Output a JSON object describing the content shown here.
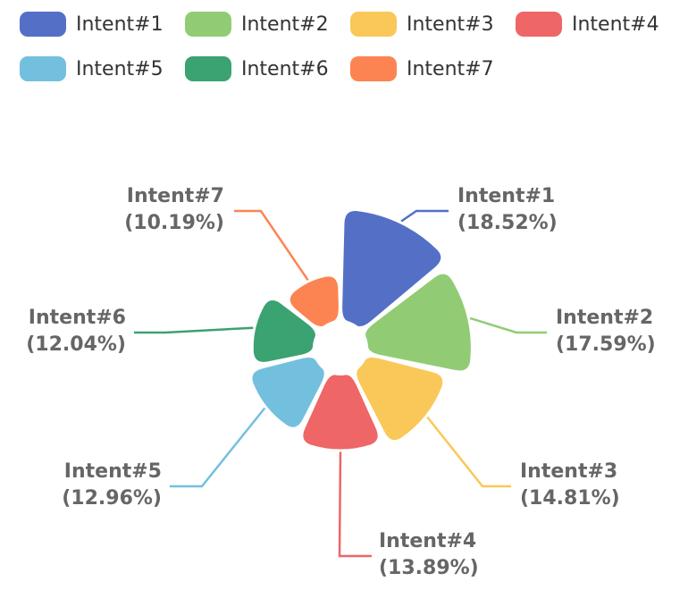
{
  "chart_data": {
    "type": "pie",
    "subtype": "rose",
    "title": "",
    "legend_position": "top",
    "categories": [
      "Intent#1",
      "Intent#2",
      "Intent#3",
      "Intent#4",
      "Intent#5",
      "Intent#6",
      "Intent#7"
    ],
    "values": [
      18.52,
      17.59,
      14.81,
      13.89,
      12.96,
      12.04,
      10.19
    ],
    "colors": [
      "#5470c6",
      "#91cc75",
      "#fac858",
      "#ee6666",
      "#73c0de",
      "#3ba272",
      "#fc8452"
    ],
    "slices": [
      {
        "name": "Intent#1",
        "value": 18.52,
        "pct_label": "(18.52%)",
        "color": "#5470c6"
      },
      {
        "name": "Intent#2",
        "value": 17.59,
        "pct_label": "(17.59%)",
        "color": "#91cc75"
      },
      {
        "name": "Intent#3",
        "value": 14.81,
        "pct_label": "(14.81%)",
        "color": "#fac858"
      },
      {
        "name": "Intent#4",
        "value": 13.89,
        "pct_label": "(13.89%)",
        "color": "#ee6666"
      },
      {
        "name": "Intent#5",
        "value": 12.96,
        "pct_label": "(12.96%)",
        "color": "#73c0de"
      },
      {
        "name": "Intent#6",
        "value": 12.04,
        "pct_label": "(12.04%)",
        "color": "#3ba272"
      },
      {
        "name": "Intent#7",
        "value": 10.19,
        "pct_label": "(10.19%)",
        "color": "#fc8452"
      }
    ]
  }
}
